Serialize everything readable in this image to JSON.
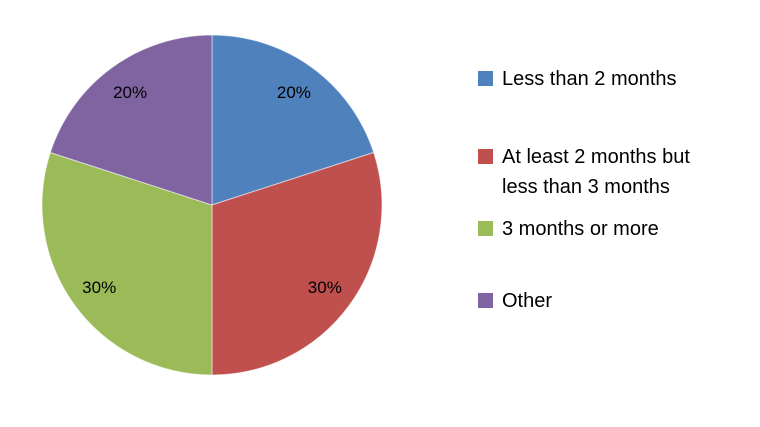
{
  "chart_data": {
    "type": "pie",
    "title": "",
    "categories": [
      "Less than 2 months",
      "At least 2 months but less than 3 months",
      "3 months or more",
      "Other"
    ],
    "values": [
      20,
      30,
      30,
      20
    ],
    "unit": "%",
    "slice_labels": [
      "20%",
      "30%",
      "30%",
      "20%"
    ],
    "colors": [
      "#4F81BD",
      "#C0504D",
      "#9BBB59",
      "#8064A2"
    ],
    "label_color": "#000000",
    "background": "#FFFFFF",
    "legend_position": "right",
    "start_angle_deg": 0,
    "direction": "clockwise"
  }
}
